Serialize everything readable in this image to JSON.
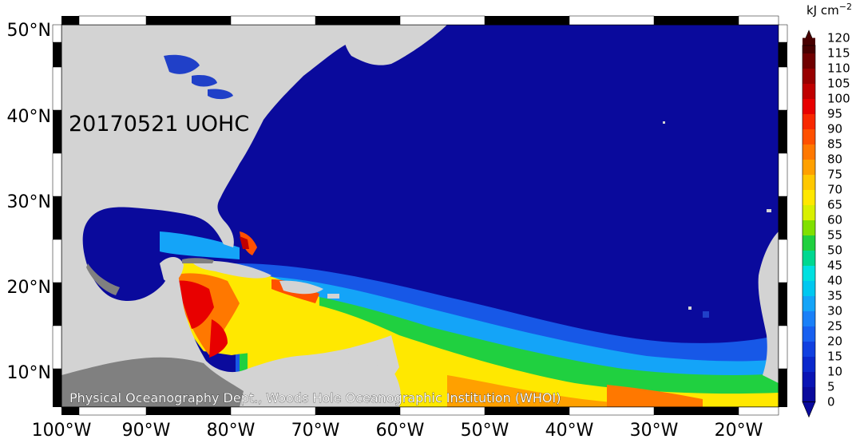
{
  "map": {
    "title": "20170521 UOHC",
    "credit": "Physical Oceanography Dept., Woods Hole Oceanographic Institution (WHOI)",
    "lon_ticks": [
      "100°W",
      "90°W",
      "80°W",
      "70°W",
      "60°W",
      "50°W",
      "40°W",
      "30°W",
      "20°W"
    ],
    "lat_ticks": [
      "50°N",
      "40°N",
      "30°N",
      "20°N",
      "10°N"
    ],
    "lon_range": [
      -100,
      -15
    ],
    "lat_range": [
      5,
      51
    ],
    "colors": {
      "ocean_low": "#0a0a9c",
      "land": "#d3d3d3",
      "land_dark": "#808080",
      "water_body": "#2040c8"
    }
  },
  "colorbar": {
    "unit": "kJ cm",
    "unit_exponent": "−2",
    "levels": [
      "0",
      "5",
      "10",
      "15",
      "20",
      "25",
      "30",
      "35",
      "40",
      "45",
      "50",
      "55",
      "60",
      "65",
      "70",
      "75",
      "80",
      "85",
      "90",
      "95",
      "100",
      "105",
      "110",
      "115",
      "120"
    ],
    "colors": [
      "#0a0a9c",
      "#0a14b4",
      "#0a28cc",
      "#1040e0",
      "#1860f0",
      "#1a80f8",
      "#14a4f8",
      "#00c8f0",
      "#00e0e0",
      "#00d890",
      "#20d040",
      "#80e000",
      "#d8f000",
      "#ffe800",
      "#ffc800",
      "#ffa000",
      "#ff7800",
      "#ff5000",
      "#f82800",
      "#e80000",
      "#c00000",
      "#980000",
      "#700000",
      "#480000"
    ]
  }
}
